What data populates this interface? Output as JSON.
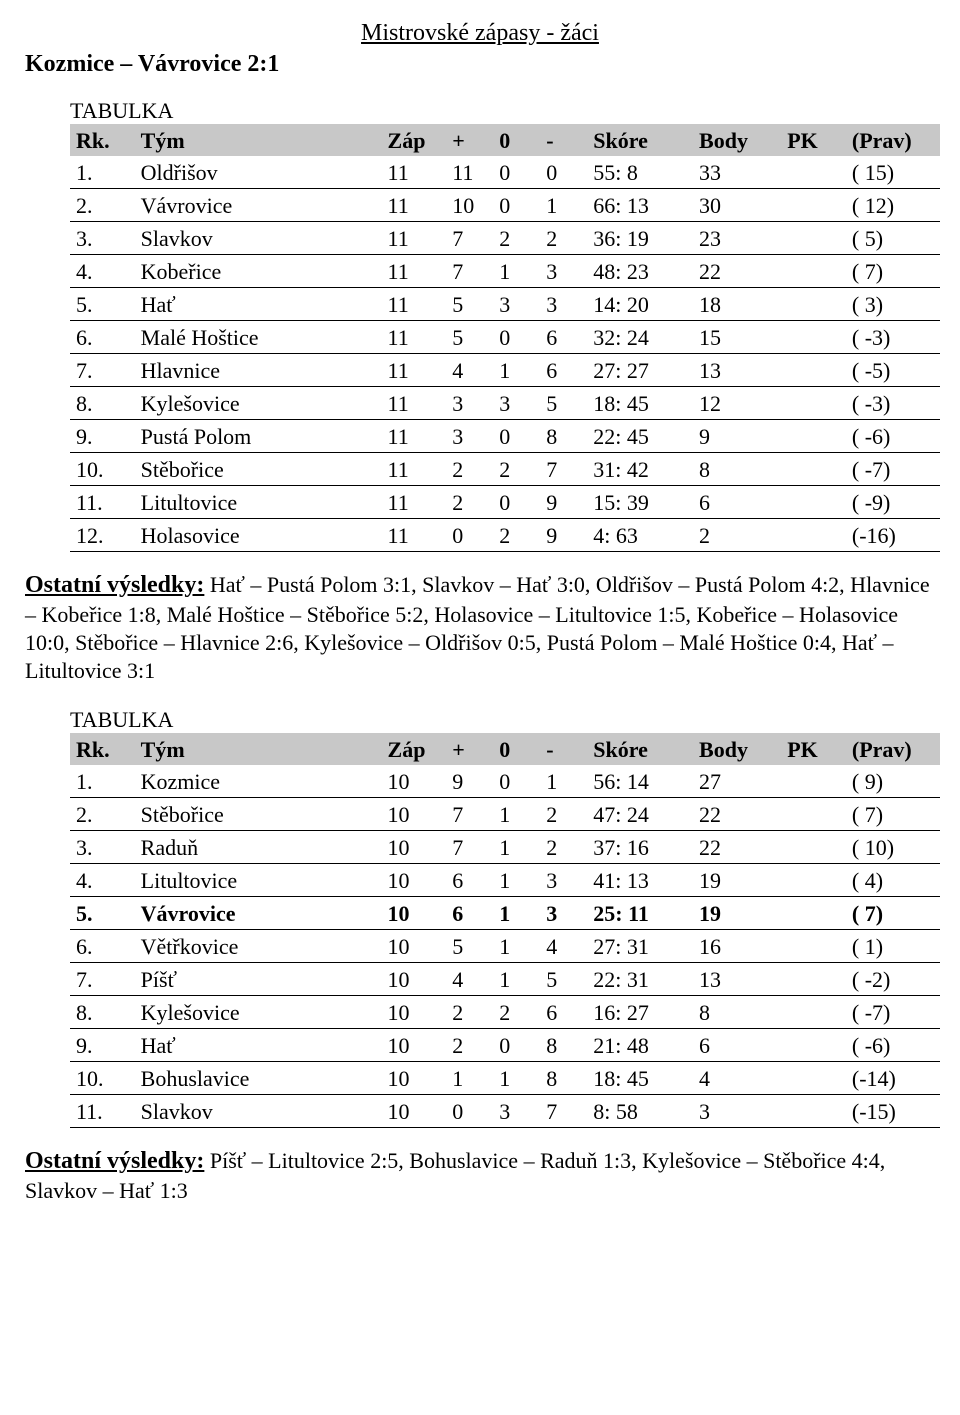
{
  "page_title": "Mistrovské zápasy - žáci",
  "match_result": "Kozmice – Vávrovice  2:1",
  "tabulka_label": "TABULKA",
  "headers": {
    "rk": "Rk.",
    "tym": "Tým",
    "zap": "Záp",
    "plus": "+",
    "nul": "0",
    "minus": "-",
    "skore": "Skóre",
    "body": "Body",
    "pk": "PK",
    "prav": "(Prav)"
  },
  "table1": {
    "rows": [
      {
        "rk": "1.",
        "tym": "Oldřišov",
        "zap": "11",
        "p": "11",
        "n": "0",
        "m": "0",
        "skore": "55: 8",
        "body": "33",
        "pk": "",
        "prav": "( 15)",
        "bold": false
      },
      {
        "rk": "2.",
        "tym": "Vávrovice",
        "zap": "11",
        "p": "10",
        "n": "0",
        "m": "1",
        "skore": "66: 13",
        "body": "30",
        "pk": "",
        "prav": "( 12)",
        "bold": false
      },
      {
        "rk": "3.",
        "tym": "Slavkov",
        "zap": "11",
        "p": "7",
        "n": "2",
        "m": "2",
        "skore": "36: 19",
        "body": "23",
        "pk": "",
        "prav": "( 5)",
        "bold": false
      },
      {
        "rk": "4.",
        "tym": "Kobeřice",
        "zap": "11",
        "p": "7",
        "n": "1",
        "m": "3",
        "skore": "48: 23",
        "body": "22",
        "pk": "",
        "prav": "( 7)",
        "bold": false
      },
      {
        "rk": "5.",
        "tym": "Hať",
        "zap": "11",
        "p": "5",
        "n": "3",
        "m": "3",
        "skore": "14: 20",
        "body": "18",
        "pk": "",
        "prav": "( 3)",
        "bold": false
      },
      {
        "rk": "6.",
        "tym": "Malé Hoštice",
        "zap": "11",
        "p": "5",
        "n": "0",
        "m": "6",
        "skore": "32: 24",
        "body": "15",
        "pk": "",
        "prav": "( -3)",
        "bold": false
      },
      {
        "rk": "7.",
        "tym": "Hlavnice",
        "zap": "11",
        "p": "4",
        "n": "1",
        "m": "6",
        "skore": "27: 27",
        "body": "13",
        "pk": "",
        "prav": "( -5)",
        "bold": false
      },
      {
        "rk": "8.",
        "tym": "Kylešovice",
        "zap": "11",
        "p": "3",
        "n": "3",
        "m": "5",
        "skore": "18: 45",
        "body": "12",
        "pk": "",
        "prav": "( -3)",
        "bold": false
      },
      {
        "rk": "9.",
        "tym": "Pustá Polom",
        "zap": "11",
        "p": "3",
        "n": "0",
        "m": "8",
        "skore": "22: 45",
        "body": "9",
        "pk": "",
        "prav": "( -6)",
        "bold": false
      },
      {
        "rk": "10.",
        "tym": "Stěbořice",
        "zap": "11",
        "p": "2",
        "n": "2",
        "m": "7",
        "skore": "31: 42",
        "body": "8",
        "pk": "",
        "prav": "( -7)",
        "bold": false
      },
      {
        "rk": "11.",
        "tym": "Litultovice",
        "zap": "11",
        "p": "2",
        "n": "0",
        "m": "9",
        "skore": "15: 39",
        "body": "6",
        "pk": "",
        "prav": "( -9)",
        "bold": false
      },
      {
        "rk": "12.",
        "tym": "Holasovice",
        "zap": "11",
        "p": "0",
        "n": "2",
        "m": "9",
        "skore": "4: 63",
        "body": "2",
        "pk": "",
        "prav": "(-16)",
        "bold": false
      }
    ]
  },
  "results1": {
    "lead": "Ostatní výsledky:",
    "text": " Hať – Pustá Polom 3:1, Slavkov – Hať 3:0, Oldřišov – Pustá Polom 4:2, Hlavnice – Kobeřice 1:8, Malé Hoštice – Stěbořice 5:2, Holasovice – Litultovice 1:5, Kobeřice – Holasovice 10:0, Stěbořice – Hlavnice 2:6, Kylešovice – Oldřišov 0:5, Pustá Polom – Malé Hoštice 0:4, Hať – Litultovice 3:1"
  },
  "table2": {
    "rows": [
      {
        "rk": "1.",
        "tym": "Kozmice",
        "zap": "10",
        "p": "9",
        "n": "0",
        "m": "1",
        "skore": "56: 14",
        "body": "27",
        "pk": "",
        "prav": "( 9)",
        "bold": false
      },
      {
        "rk": "2.",
        "tym": "Stěbořice",
        "zap": "10",
        "p": "7",
        "n": "1",
        "m": "2",
        "skore": "47: 24",
        "body": "22",
        "pk": "",
        "prav": "( 7)",
        "bold": false
      },
      {
        "rk": "3.",
        "tym": "Raduň",
        "zap": "10",
        "p": "7",
        "n": "1",
        "m": "2",
        "skore": "37: 16",
        "body": "22",
        "pk": "",
        "prav": "( 10)",
        "bold": false
      },
      {
        "rk": "4.",
        "tym": "Litultovice",
        "zap": "10",
        "p": "6",
        "n": "1",
        "m": "3",
        "skore": "41: 13",
        "body": "19",
        "pk": "",
        "prav": "( 4)",
        "bold": false
      },
      {
        "rk": "5.",
        "tym": "Vávrovice",
        "zap": "10",
        "p": "6",
        "n": "1",
        "m": "3",
        "skore": "25: 11",
        "body": "19",
        "pk": "",
        "prav": "( 7)",
        "bold": true
      },
      {
        "rk": "6.",
        "tym": "Větřkovice",
        "zap": "10",
        "p": "5",
        "n": "1",
        "m": "4",
        "skore": "27: 31",
        "body": "16",
        "pk": "",
        "prav": "( 1)",
        "bold": false
      },
      {
        "rk": "7.",
        "tym": "Píšť",
        "zap": "10",
        "p": "4",
        "n": "1",
        "m": "5",
        "skore": "22: 31",
        "body": "13",
        "pk": "",
        "prav": "( -2)",
        "bold": false
      },
      {
        "rk": "8.",
        "tym": "Kylešovice",
        "zap": "10",
        "p": "2",
        "n": "2",
        "m": "6",
        "skore": "16: 27",
        "body": "8",
        "pk": "",
        "prav": "( -7)",
        "bold": false
      },
      {
        "rk": "9.",
        "tym": "Hať",
        "zap": "10",
        "p": "2",
        "n": "0",
        "m": "8",
        "skore": "21: 48",
        "body": "6",
        "pk": "",
        "prav": "( -6)",
        "bold": false
      },
      {
        "rk": "10.",
        "tym": "Bohuslavice",
        "zap": "10",
        "p": "1",
        "n": "1",
        "m": "8",
        "skore": "18: 45",
        "body": "4",
        "pk": "",
        "prav": "(-14)",
        "bold": false
      },
      {
        "rk": "11.",
        "tym": "Slavkov",
        "zap": "10",
        "p": "0",
        "n": "3",
        "m": "7",
        "skore": "8: 58",
        "body": "3",
        "pk": "",
        "prav": "(-15)",
        "bold": false
      }
    ]
  },
  "results2": {
    "lead": "Ostatní výsledky:",
    "text": " Píšť – Litultovice 2:5, Bohuslavice – Raduň 1:3, Kylešovice – Stěbořice 4:4, Slavkov – Hať 1:3"
  }
}
